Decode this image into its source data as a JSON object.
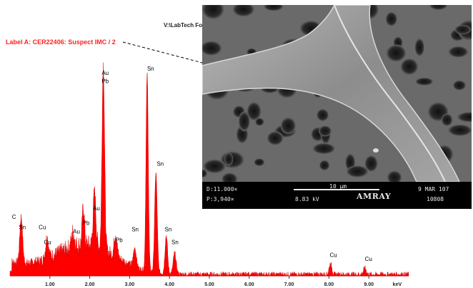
{
  "chart_data": {
    "type": "line",
    "title": "Label A: CER22406: Suspect IMC / 2",
    "xlabel": "keV",
    "ylabel": "",
    "xlim": [
      0,
      10
    ],
    "ylim": [
      0,
      100
    ],
    "grid": false,
    "legend": "none",
    "x_ticks": [
      {
        "value": 1.0,
        "label": "1.00"
      },
      {
        "value": 2.0,
        "label": "2.00"
      },
      {
        "value": 3.0,
        "label": "3.00"
      },
      {
        "value": 4.0,
        "label": "4.00"
      },
      {
        "value": 5.0,
        "label": "5.00"
      },
      {
        "value": 6.0,
        "label": "6.00"
      },
      {
        "value": 7.0,
        "label": "7.00"
      },
      {
        "value": 8.0,
        "label": "8.00"
      },
      {
        "value": 9.0,
        "label": "9.00"
      }
    ],
    "x_unit_label": "keV",
    "fill_color": "#ff0000",
    "peaks": [
      {
        "energy": 0.28,
        "intensity": 22,
        "width": 0.05
      },
      {
        "energy": 0.93,
        "intensity": 10,
        "width": 0.05
      },
      {
        "energy": 1.58,
        "intensity": 7,
        "width": 0.05
      },
      {
        "energy": 1.84,
        "intensity": 18,
        "width": 0.04
      },
      {
        "energy": 2.12,
        "intensity": 25,
        "width": 0.05
      },
      {
        "energy": 2.34,
        "intensity": 88,
        "width": 0.045
      },
      {
        "energy": 2.65,
        "intensity": 11,
        "width": 0.05
      },
      {
        "energy": 3.13,
        "intensity": 9,
        "width": 0.05
      },
      {
        "energy": 3.44,
        "intensity": 93,
        "width": 0.04
      },
      {
        "energy": 3.66,
        "intensity": 47,
        "width": 0.045
      },
      {
        "energy": 3.92,
        "intensity": 18,
        "width": 0.045
      },
      {
        "energy": 4.13,
        "intensity": 10,
        "width": 0.05
      },
      {
        "energy": 8.04,
        "intensity": 5,
        "width": 0.05
      },
      {
        "energy": 8.9,
        "intensity": 3,
        "width": 0.05
      }
    ],
    "peak_labels": [
      {
        "text": "C",
        "energy": 0.05,
        "intensity": 27
      },
      {
        "text": "Sn",
        "energy": 0.22,
        "intensity": 22
      },
      {
        "text": "Cu",
        "energy": 0.72,
        "intensity": 22
      },
      {
        "text": "Cu",
        "energy": 0.85,
        "intensity": 15
      },
      {
        "text": "Au",
        "energy": 1.58,
        "intensity": 20
      },
      {
        "text": "Pb",
        "energy": 1.82,
        "intensity": 24
      },
      {
        "text": "Au",
        "energy": 2.08,
        "intensity": 31
      },
      {
        "text": "Au",
        "energy": 2.3,
        "intensity": 95
      },
      {
        "text": "Pb",
        "energy": 2.3,
        "intensity": 91
      },
      {
        "text": "Pb",
        "energy": 2.65,
        "intensity": 16
      },
      {
        "text": "Sn",
        "energy": 3.05,
        "intensity": 21
      },
      {
        "text": "Sn",
        "energy": 3.44,
        "intensity": 97
      },
      {
        "text": "Sn",
        "energy": 3.68,
        "intensity": 52
      },
      {
        "text": "Sn",
        "energy": 3.88,
        "intensity": 21
      },
      {
        "text": "Sn",
        "energy": 4.05,
        "intensity": 15
      },
      {
        "text": "Cu",
        "energy": 8.02,
        "intensity": 9
      },
      {
        "text": "Cu",
        "energy": 8.9,
        "intensity": 7
      }
    ]
  },
  "inset": {
    "folder_label": "V:\\LabTech Folder",
    "readout": {
      "distance": "D:11.000×",
      "magnification": "P:3,940×",
      "scale": "10 µm",
      "voltage": "8.83 kV",
      "brand": "AMRAY",
      "date": "9 MAR 107",
      "frame": "10808"
    }
  }
}
